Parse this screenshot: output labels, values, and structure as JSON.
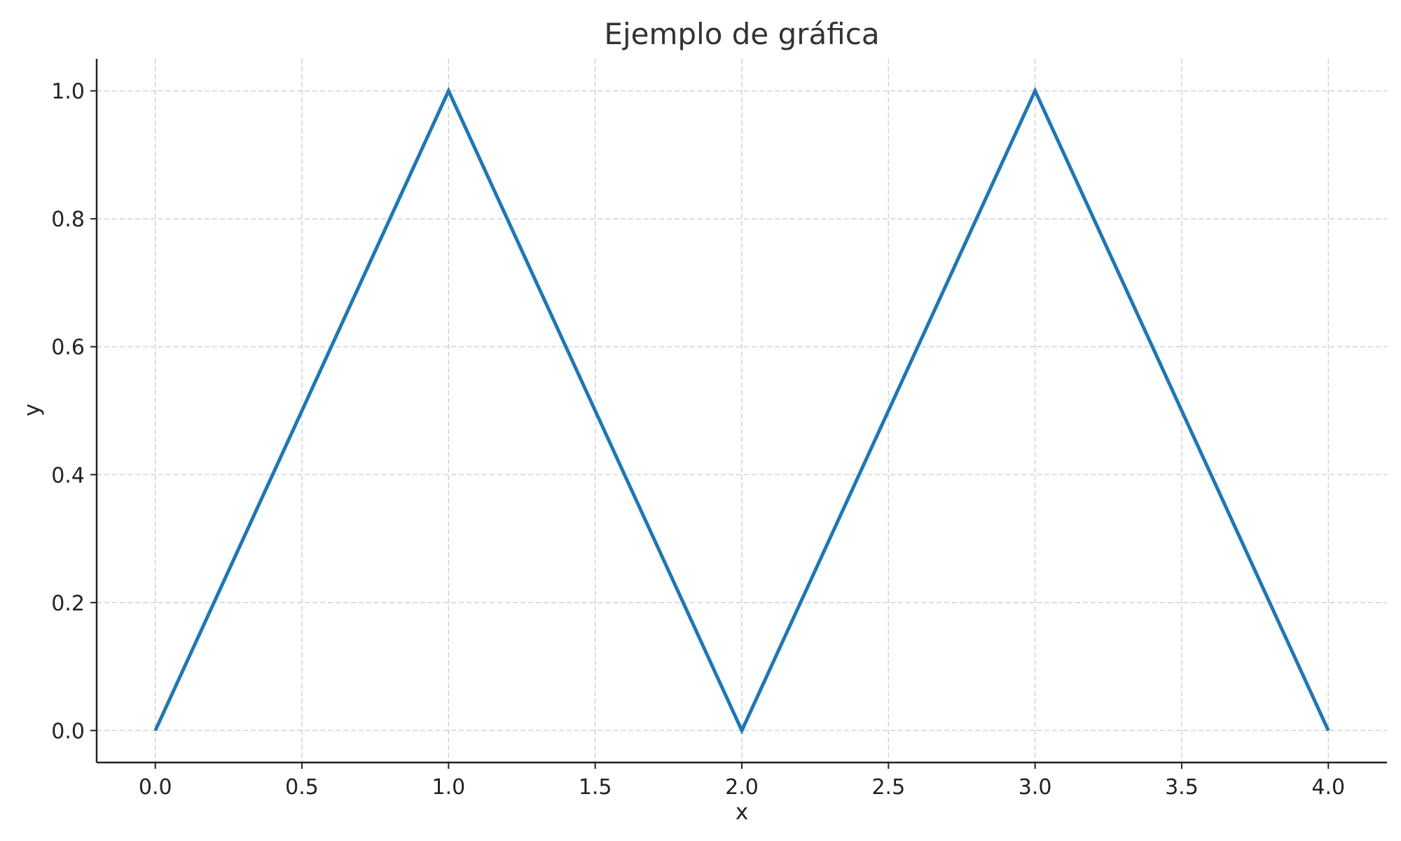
{
  "chart_data": {
    "type": "line",
    "title": "Ejemplo de gráfica",
    "xlabel": "x",
    "ylabel": "y",
    "xlim": [
      -0.2,
      4.2
    ],
    "ylim": [
      -0.05,
      1.05
    ],
    "x_ticks": [
      0.0,
      0.5,
      1.0,
      1.5,
      2.0,
      2.5,
      3.0,
      3.5,
      4.0
    ],
    "y_ticks": [
      0.0,
      0.2,
      0.4,
      0.6,
      0.8,
      1.0
    ],
    "x_tick_labels": [
      "0.0",
      "0.5",
      "1.0",
      "1.5",
      "2.0",
      "2.5",
      "3.0",
      "3.5",
      "4.0"
    ],
    "y_tick_labels": [
      "0.0",
      "0.2",
      "0.4",
      "0.6",
      "0.8",
      "1.0"
    ],
    "grid": true,
    "series": [
      {
        "color": "#1f77b4",
        "x": [
          0,
          1,
          2,
          3,
          4
        ],
        "y": [
          0,
          1,
          0,
          1,
          0
        ]
      }
    ]
  }
}
